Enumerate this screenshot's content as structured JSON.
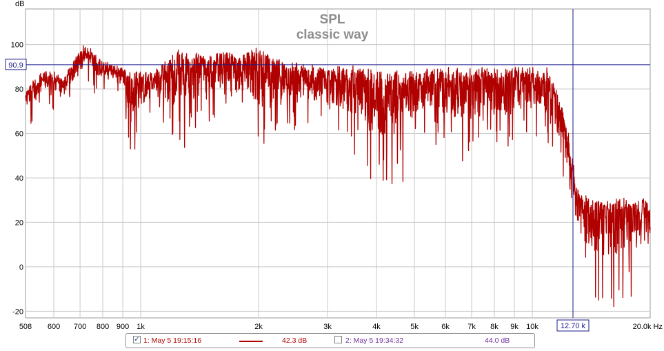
{
  "chart_data": {
    "type": "line",
    "title": "SPL",
    "subtitle": "classic way",
    "ylabel": "dB",
    "xunit": "Hz",
    "xscale": "log",
    "xlim": [
      508,
      20000
    ],
    "ylim": [
      -23,
      116
    ],
    "grid": true,
    "y_ticks": [
      -20,
      0,
      20,
      40,
      60,
      80,
      100
    ],
    "x_ticks": [
      {
        "v": 508,
        "label": "508"
      },
      {
        "v": 600,
        "label": "600"
      },
      {
        "v": 700,
        "label": "700"
      },
      {
        "v": 800,
        "label": "800"
      },
      {
        "v": 900,
        "label": "900"
      },
      {
        "v": 1000,
        "label": "1k"
      },
      {
        "v": 2000,
        "label": "2k"
      },
      {
        "v": 3000,
        "label": "3k"
      },
      {
        "v": 4000,
        "label": "4k"
      },
      {
        "v": 5000,
        "label": "5k"
      },
      {
        "v": 6000,
        "label": "6k"
      },
      {
        "v": 7000,
        "label": "7k"
      },
      {
        "v": 8000,
        "label": "8k"
      },
      {
        "v": 9000,
        "label": "9k"
      },
      {
        "v": 10000,
        "label": "10k"
      },
      {
        "v": 20000,
        "label": "20.0k Hz"
      }
    ],
    "cursor": {
      "x": 12700,
      "x_label": "12.70 k",
      "y": 90.9,
      "y_label": "90.9"
    },
    "series": [
      {
        "name": "1: May 5 19:15:16",
        "color": "#b00000",
        "cursor_value": "42.3 dB",
        "checked": true,
        "envelope": [
          {
            "f": 508,
            "hi": 79,
            "lo": 70
          },
          {
            "f": 530,
            "hi": 85,
            "lo": 60
          },
          {
            "f": 560,
            "hi": 88,
            "lo": 75
          },
          {
            "f": 600,
            "hi": 89,
            "lo": 70
          },
          {
            "f": 640,
            "hi": 86,
            "lo": 73
          },
          {
            "f": 680,
            "hi": 95,
            "lo": 76
          },
          {
            "f": 720,
            "hi": 101,
            "lo": 85
          },
          {
            "f": 760,
            "hi": 97,
            "lo": 78
          },
          {
            "f": 800,
            "hi": 93,
            "lo": 80
          },
          {
            "f": 850,
            "hi": 92,
            "lo": 79
          },
          {
            "f": 900,
            "hi": 91,
            "lo": 74
          },
          {
            "f": 940,
            "hi": 88,
            "lo": 45
          },
          {
            "f": 1000,
            "hi": 88,
            "lo": 62
          },
          {
            "f": 1100,
            "hi": 90,
            "lo": 65
          },
          {
            "f": 1250,
            "hi": 98,
            "lo": 48
          },
          {
            "f": 1400,
            "hi": 97,
            "lo": 62
          },
          {
            "f": 1600,
            "hi": 97,
            "lo": 68
          },
          {
            "f": 1800,
            "hi": 96,
            "lo": 66
          },
          {
            "f": 2000,
            "hi": 99,
            "lo": 50
          },
          {
            "f": 2300,
            "hi": 93,
            "lo": 58
          },
          {
            "f": 2600,
            "hi": 92,
            "lo": 62
          },
          {
            "f": 3000,
            "hi": 91,
            "lo": 58
          },
          {
            "f": 3500,
            "hi": 91,
            "lo": 50
          },
          {
            "f": 3900,
            "hi": 89,
            "lo": 38
          },
          {
            "f": 4500,
            "hi": 89,
            "lo": 32
          },
          {
            "f": 5200,
            "hi": 89,
            "lo": 55
          },
          {
            "f": 6000,
            "hi": 90,
            "lo": 55
          },
          {
            "f": 6700,
            "hi": 89,
            "lo": 42
          },
          {
            "f": 7500,
            "hi": 90,
            "lo": 55
          },
          {
            "f": 8500,
            "hi": 90,
            "lo": 52
          },
          {
            "f": 9500,
            "hi": 91,
            "lo": 55
          },
          {
            "f": 10500,
            "hi": 90,
            "lo": 56
          },
          {
            "f": 11000,
            "hi": 90,
            "lo": 55
          },
          {
            "f": 11400,
            "hi": 82,
            "lo": 50
          },
          {
            "f": 11900,
            "hi": 72,
            "lo": 40
          },
          {
            "f": 12400,
            "hi": 62,
            "lo": 30
          },
          {
            "f": 12700,
            "hi": 48,
            "lo": 15
          },
          {
            "f": 13200,
            "hi": 35,
            "lo": -5
          },
          {
            "f": 14000,
            "hi": 31,
            "lo": -12
          },
          {
            "f": 15500,
            "hi": 31,
            "lo": -22
          },
          {
            "f": 17000,
            "hi": 31,
            "lo": -18
          },
          {
            "f": 18500,
            "hi": 32,
            "lo": -12
          },
          {
            "f": 20000,
            "hi": 31,
            "lo": 2
          }
        ]
      },
      {
        "name": "2: May 5 19:34:32",
        "color": "#7030a0",
        "cursor_value": "44.0 dB",
        "checked": false
      }
    ]
  }
}
